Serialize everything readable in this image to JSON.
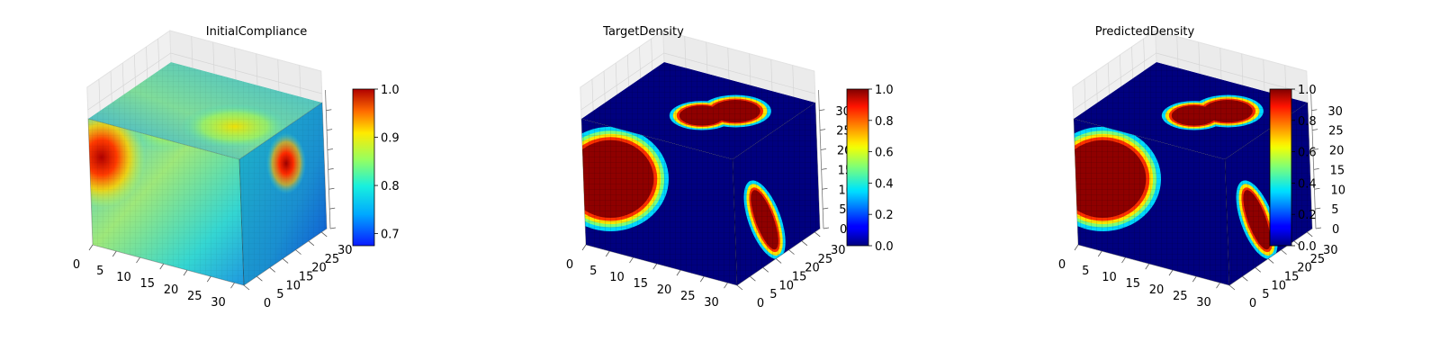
{
  "chart_data": [
    {
      "type": "voxel-3d",
      "title": "InitialCompliance",
      "field": "compliance",
      "x_ticks": [
        "0",
        "5",
        "10",
        "15",
        "20",
        "25",
        "30"
      ],
      "y_ticks": [
        "0",
        "5",
        "10",
        "15",
        "20",
        "25",
        "30"
      ],
      "z_ticks": [],
      "xlim": [
        0,
        32
      ],
      "ylim": [
        0,
        32
      ],
      "zlim": [
        0,
        32
      ],
      "colorbar": {
        "cmap": "jet",
        "range": [
          0.675,
          1.0
        ],
        "ticks": [
          "0.7",
          "0.8",
          "0.9",
          "1.0"
        ],
        "tick_values": [
          0.7,
          0.8,
          0.9,
          1.0
        ]
      },
      "value_range": [
        0.68,
        1.0
      ],
      "hotspots": [
        {
          "face": "front",
          "u": 0.08,
          "v": 0.28,
          "value": 1.0
        },
        {
          "face": "side",
          "u": 0.55,
          "v": 0.72,
          "value": 1.0
        },
        {
          "face": "top",
          "u": 0.55,
          "v": 0.72,
          "value": 0.9
        }
      ]
    },
    {
      "type": "voxel-3d",
      "title": "TargetDensity",
      "field": "density",
      "x_ticks": [
        "0",
        "5",
        "10",
        "15",
        "20",
        "25",
        "30"
      ],
      "y_ticks": [
        "0",
        "5",
        "10",
        "15",
        "20",
        "25",
        "30"
      ],
      "z_ticks": [
        "0",
        "5",
        "10",
        "15",
        "20",
        "25",
        "30"
      ],
      "xlim": [
        0,
        32
      ],
      "ylim": [
        0,
        32
      ],
      "zlim": [
        0,
        32
      ],
      "colorbar": {
        "cmap": "jet",
        "range": [
          0.0,
          1.0
        ],
        "ticks": [
          "0.0",
          "0.2",
          "0.4",
          "0.6",
          "0.8",
          "1.0"
        ],
        "tick_values": [
          0.0,
          0.2,
          0.4,
          0.6,
          0.8,
          1.0
        ]
      },
      "regions": [
        {
          "face": "front",
          "shape": "disk",
          "cx": 6,
          "cz": 10,
          "r": 10,
          "value": 1.0
        },
        {
          "face": "top",
          "shape": "lobe",
          "value": 1.0
        },
        {
          "face": "side",
          "shape": "lobe",
          "value": 1.0
        }
      ]
    },
    {
      "type": "voxel-3d",
      "title": "PredictedDensity",
      "field": "density",
      "x_ticks": [
        "0",
        "5",
        "10",
        "15",
        "20",
        "25",
        "30"
      ],
      "y_ticks": [
        "0",
        "5",
        "10",
        "15",
        "20",
        "25",
        "30"
      ],
      "z_ticks": [
        "0",
        "5",
        "10",
        "15",
        "20",
        "25",
        "30"
      ],
      "xlim": [
        0,
        32
      ],
      "ylim": [
        0,
        32
      ],
      "zlim": [
        0,
        32
      ],
      "colorbar": {
        "cmap": "jet",
        "range": [
          0.0,
          1.0
        ],
        "ticks": [
          "0.0",
          "0.2",
          "0.4",
          "0.6",
          "0.8",
          "1.0"
        ],
        "tick_values": [
          0.0,
          0.2,
          0.4,
          0.6,
          0.8,
          1.0
        ]
      },
      "regions": [
        {
          "face": "front",
          "shape": "disk",
          "cx": 6,
          "cz": 10,
          "r": 10,
          "value": 1.0
        },
        {
          "face": "top",
          "shape": "lobe",
          "value": 1.0
        },
        {
          "face": "side",
          "shape": "lobe",
          "value": 1.0
        }
      ]
    }
  ]
}
